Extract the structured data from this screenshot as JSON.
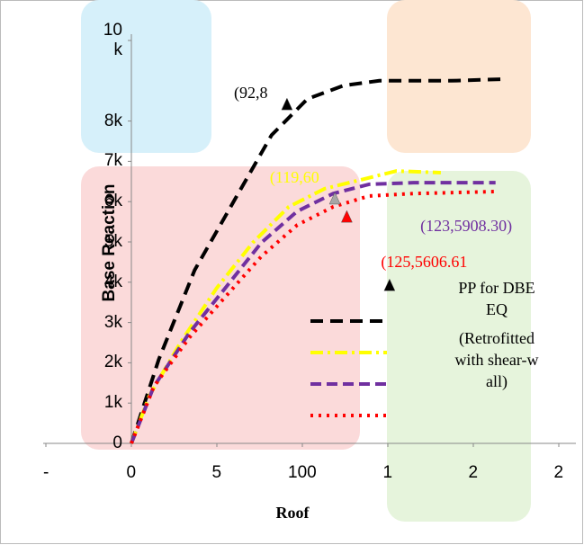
{
  "chart_data": {
    "type": "line",
    "y_label": "Base Reaction",
    "x_label": "Roof",
    "xlim": [
      -50,
      260
    ],
    "ylim": [
      0,
      10000
    ],
    "xticks": [
      {
        "value": -50,
        "label": "-"
      },
      {
        "value": 0,
        "label": "0"
      },
      {
        "value": 50,
        "label": "5"
      },
      {
        "value": 100,
        "label": "100"
      },
      {
        "value": 150,
        "label": "1"
      },
      {
        "value": 200,
        "label": "2"
      },
      {
        "value": 250,
        "label": "2"
      }
    ],
    "yticks": [
      {
        "value": 0,
        "label": "0"
      },
      {
        "value": 1000,
        "label": "1k"
      },
      {
        "value": 2000,
        "label": "2k"
      },
      {
        "value": 3000,
        "label": "3k"
      },
      {
        "value": 4000,
        "label": "4k"
      },
      {
        "value": 5000,
        "label": "5k"
      },
      {
        "value": 6000,
        "label": "6k"
      },
      {
        "value": 7000,
        "label": "7k"
      },
      {
        "value": 8000,
        "label": "8k"
      },
      {
        "value": 10000,
        "label": "10\nk"
      }
    ],
    "series": [
      {
        "color": "#000000",
        "dash": "14 8",
        "x": [
          0,
          16,
          37,
          61,
          82,
          103,
          124,
          145,
          187,
          218
        ],
        "values": [
          0,
          2080,
          4300,
          6090,
          7650,
          8550,
          8880,
          9000,
          9000,
          9040
        ]
      },
      {
        "color": "#ffff00",
        "dash": "14 5 3 5",
        "x": [
          0,
          10.5,
          29,
          50,
          71,
          92,
          113,
          134,
          155,
          181
        ],
        "values": [
          0,
          1180,
          2520,
          3860,
          4980,
          5870,
          6320,
          6540,
          6760,
          6720
        ]
      },
      {
        "color": "#7030a0",
        "dash": "12 6",
        "x": [
          0,
          13,
          34,
          55,
          76,
          97,
          118,
          139,
          165,
          213
        ],
        "values": [
          0,
          1400,
          2750,
          3860,
          4980,
          5760,
          6200,
          6430,
          6470,
          6470
        ]
      },
      {
        "color": "#ff0000",
        "dash": "3 6",
        "x": [
          0,
          13,
          34,
          55,
          76,
          97,
          118,
          139,
          165,
          213
        ],
        "values": [
          0,
          1400,
          2630,
          3640,
          4640,
          5420,
          5870,
          6140,
          6200,
          6250
        ]
      }
    ],
    "markers": [
      {
        "x": 91,
        "y": 8390,
        "color": "#000000"
      },
      {
        "x": 119,
        "y": 6050,
        "color": "#a6a6a6"
      },
      {
        "x": 126,
        "y": 5600,
        "color": "#ff0000"
      },
      {
        "x": 151,
        "y": 3900,
        "color": "#000000"
      }
    ],
    "annotations": [
      {
        "text": "(92,8",
        "x": 60,
        "y": 8700,
        "color": "#000000"
      },
      {
        "text": "(119,60",
        "x": 81,
        "y": 6600,
        "color": "#ffff00"
      },
      {
        "text": "(123,5908.30)",
        "x": 169,
        "y": 5400,
        "color": "#7030a0"
      },
      {
        "text": "(125,5606.61",
        "x": 146,
        "y": 4500,
        "color": "#ff0000"
      }
    ],
    "text_box": [
      "PP for DBE EQ",
      "(Retrofitted with shear-wall)"
    ]
  }
}
